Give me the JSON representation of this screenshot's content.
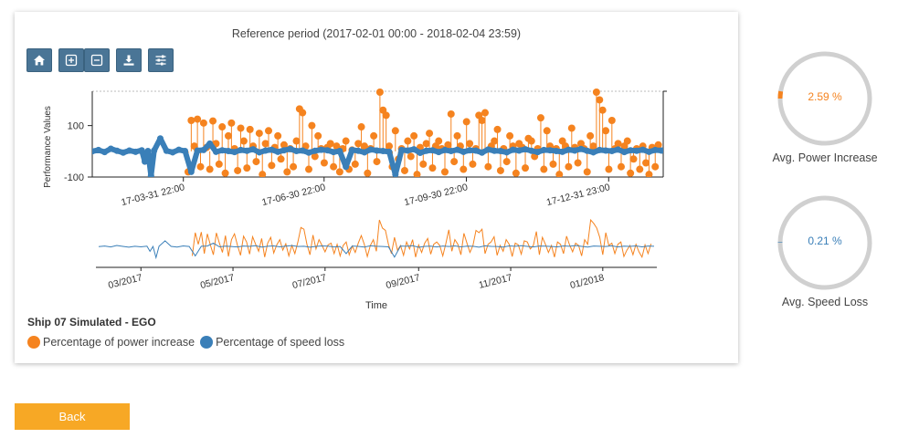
{
  "chart": {
    "title": "Reference period (2017-02-01 00:00 - 2018-02-04 23:59)",
    "subtitle": "Ship 07 Simulated - EGO",
    "toolbar": [
      {
        "name": "home-icon",
        "label": "home"
      },
      {
        "name": "zoom-in-icon",
        "label": "zoom in"
      },
      {
        "name": "zoom-out-icon",
        "label": "zoom out"
      },
      {
        "name": "download-icon",
        "label": "download"
      },
      {
        "name": "settings-sliders-icon",
        "label": "settings"
      }
    ]
  },
  "gauges": [
    {
      "value": "2.59 %",
      "label": "Avg. Power Increase",
      "fraction": 0.0259,
      "color": "#f5831f"
    },
    {
      "value": "0.21 %",
      "label": "Avg. Speed Loss",
      "fraction": 0.0021,
      "color": "#3a7fb8"
    }
  ],
  "back_label": "Back",
  "colors": {
    "power": "#f5831f",
    "speed": "#3a7fb8",
    "button": "#4a7596",
    "back": "#f7a825"
  },
  "chart_data": {
    "type": "scatter",
    "ylabel": "Performance Values",
    "xlabel": "Time",
    "ylim": [
      -100,
      230
    ],
    "yticks": [
      100,
      -100
    ],
    "xticks": [
      "17-03-31 22:00",
      "17-06-30 22:00",
      "17-09-30 22:00",
      "17-12-31 23:00"
    ],
    "xtick_days": [
      58.9,
      149.9,
      241.9,
      333.9
    ],
    "xrange_days": [
      0,
      368
    ],
    "navigator_xticks": [
      "03/2017",
      "05/2017",
      "07/2017",
      "09/2017",
      "11/2017",
      "01/2018"
    ],
    "navigator_xtick_days": [
      28,
      89,
      150,
      212,
      273,
      334
    ],
    "legend_position": "bottom-left",
    "grid": false,
    "series": [
      {
        "name": "Percentage of power increase",
        "color": "#f5831f",
        "x": [
          62,
          64,
          66,
          68,
          70,
          72,
          74,
          76,
          78,
          80,
          82,
          84,
          86,
          88,
          90,
          92,
          94,
          96,
          98,
          100,
          102,
          104,
          106,
          108,
          110,
          112,
          114,
          116,
          118,
          120,
          122,
          124,
          126,
          128,
          130,
          132,
          134,
          136,
          138,
          140,
          142,
          144,
          146,
          148,
          150,
          152,
          154,
          156,
          158,
          160,
          162,
          164,
          166,
          168,
          170,
          172,
          174,
          176,
          178,
          180,
          182,
          184,
          186,
          188,
          190,
          192,
          194,
          196,
          198,
          200,
          202,
          204,
          206,
          208,
          210,
          212,
          214,
          216,
          218,
          220,
          222,
          224,
          226,
          228,
          230,
          232,
          234,
          236,
          238,
          240,
          242,
          244,
          246,
          248,
          250,
          252,
          254,
          256,
          258,
          260,
          262,
          264,
          266,
          268,
          270,
          272,
          274,
          276,
          278,
          280,
          282,
          284,
          286,
          288,
          290,
          292,
          294,
          296,
          298,
          300,
          302,
          304,
          306,
          308,
          310,
          312,
          314,
          316,
          318,
          320,
          322,
          324,
          326,
          328,
          330,
          332,
          334,
          336,
          338,
          340,
          342,
          344,
          346,
          348,
          350,
          352,
          354,
          356,
          358,
          360,
          362,
          364,
          366
        ],
        "y": [
          -80,
          120,
          20,
          125,
          -60,
          110,
          15,
          -70,
          118,
          30,
          -50,
          95,
          -85,
          60,
          110,
          10,
          -75,
          90,
          40,
          -65,
          85,
          20,
          -40,
          70,
          -90,
          30,
          80,
          -55,
          15,
          60,
          -30,
          25,
          -80,
          10,
          -60,
          40,
          165,
          150,
          20,
          -70,
          100,
          -20,
          60,
          10,
          -45,
          15,
          30,
          -60,
          20,
          -80,
          10,
          40,
          -70,
          5,
          -50,
          30,
          95,
          20,
          -85,
          10,
          60,
          -40,
          230,
          160,
          140,
          20,
          -60,
          80,
          -30,
          10,
          -75,
          40,
          -20,
          60,
          -90,
          15,
          -50,
          30,
          70,
          -65,
          20,
          40,
          10,
          -80,
          25,
          145,
          -40,
          60,
          20,
          -70,
          115,
          30,
          -50,
          10,
          140,
          120,
          150,
          -60,
          20,
          40,
          85,
          -75,
          10,
          -40,
          60,
          20,
          -85,
          30,
          15,
          -65,
          50,
          40,
          -20,
          10,
          130,
          -70,
          80,
          20,
          -50,
          10,
          -90,
          40,
          20,
          -60,
          90,
          15,
          -45,
          30,
          10,
          -80,
          60,
          20,
          230,
          200,
          160,
          80,
          -70,
          120,
          10,
          30,
          -60,
          20,
          40,
          -85,
          -30,
          10,
          -70,
          20,
          -45,
          -90,
          15,
          -60,
          25
        ]
      },
      {
        "name": "Percentage of speed loss",
        "color": "#3a7fb8",
        "x": [
          0,
          4,
          8,
          12,
          16,
          20,
          24,
          28,
          32,
          34,
          36,
          38,
          40,
          44,
          48,
          52,
          56,
          60,
          64,
          68,
          72,
          76,
          80,
          84,
          88,
          92,
          96,
          100,
          104,
          108,
          112,
          116,
          120,
          124,
          128,
          132,
          136,
          140,
          144,
          148,
          152,
          156,
          160,
          164,
          168,
          172,
          176,
          180,
          184,
          188,
          192,
          196,
          200,
          204,
          208,
          212,
          216,
          220,
          224,
          228,
          232,
          236,
          240,
          244,
          248,
          252,
          256,
          260,
          264,
          268,
          272,
          276,
          280,
          284,
          288,
          292,
          296,
          300,
          304,
          308,
          312,
          316,
          320,
          324,
          328,
          332,
          336,
          340,
          344,
          348,
          352,
          356,
          360,
          364,
          368
        ],
        "y": [
          0,
          5,
          -3,
          10,
          2,
          -5,
          3,
          -2,
          4,
          -40,
          1,
          -95,
          3,
          50,
          2,
          -4,
          6,
          1,
          -80,
          3,
          5,
          30,
          -2,
          4,
          1,
          -3,
          5,
          2,
          8,
          -4,
          3,
          6,
          -2,
          4,
          9,
          1,
          3,
          -5,
          2,
          6,
          4,
          -3,
          1,
          -60,
          5,
          2,
          -4,
          7,
          3,
          1,
          -2,
          -90,
          5,
          3,
          8,
          -6,
          2,
          4,
          -3,
          5,
          1,
          6,
          -2,
          4,
          3,
          -5,
          7,
          2,
          1,
          -4,
          6,
          3,
          8,
          2,
          -3,
          5,
          4,
          1,
          -2,
          6,
          3,
          9,
          2,
          -4,
          5,
          3,
          1,
          7,
          -3,
          4,
          2,
          6,
          -2,
          5,
          3
        ]
      }
    ]
  }
}
